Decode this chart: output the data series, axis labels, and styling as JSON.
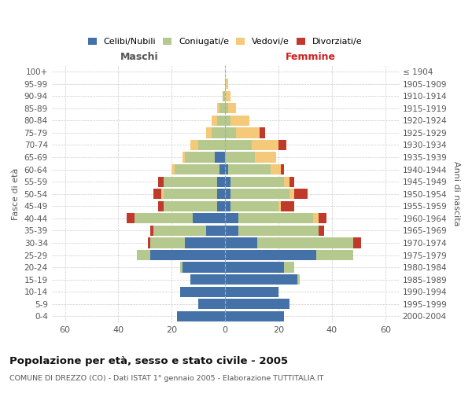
{
  "age_groups": [
    "0-4",
    "5-9",
    "10-14",
    "15-19",
    "20-24",
    "25-29",
    "30-34",
    "35-39",
    "40-44",
    "45-49",
    "50-54",
    "55-59",
    "60-64",
    "65-69",
    "70-74",
    "75-79",
    "80-84",
    "85-89",
    "90-94",
    "95-99",
    "100+"
  ],
  "birth_years": [
    "2000-2004",
    "1995-1999",
    "1990-1994",
    "1985-1989",
    "1980-1984",
    "1975-1979",
    "1970-1974",
    "1965-1969",
    "1960-1964",
    "1955-1959",
    "1950-1954",
    "1945-1949",
    "1940-1944",
    "1935-1939",
    "1930-1934",
    "1925-1929",
    "1920-1924",
    "1915-1919",
    "1910-1914",
    "1905-1909",
    "≤ 1904"
  ],
  "males": {
    "celibi": [
      18,
      10,
      17,
      13,
      16,
      28,
      15,
      7,
      12,
      3,
      3,
      3,
      2,
      4,
      0,
      0,
      0,
      0,
      0,
      0,
      0
    ],
    "coniugati": [
      0,
      0,
      0,
      0,
      1,
      5,
      13,
      20,
      22,
      20,
      20,
      20,
      17,
      11,
      10,
      5,
      3,
      2,
      1,
      0,
      0
    ],
    "vedovi": [
      0,
      0,
      0,
      0,
      0,
      0,
      0,
      0,
      0,
      0,
      1,
      0,
      1,
      1,
      3,
      2,
      2,
      1,
      0,
      0,
      0
    ],
    "divorziati": [
      0,
      0,
      0,
      0,
      0,
      0,
      1,
      1,
      3,
      2,
      3,
      2,
      0,
      0,
      0,
      0,
      0,
      0,
      0,
      0,
      0
    ]
  },
  "females": {
    "nubili": [
      22,
      24,
      20,
      27,
      22,
      34,
      12,
      5,
      5,
      2,
      2,
      2,
      1,
      0,
      0,
      0,
      0,
      0,
      0,
      0,
      0
    ],
    "coniugate": [
      0,
      0,
      0,
      1,
      4,
      14,
      36,
      30,
      28,
      18,
      22,
      20,
      16,
      11,
      10,
      4,
      2,
      1,
      0,
      0,
      0
    ],
    "vedove": [
      0,
      0,
      0,
      0,
      0,
      0,
      0,
      0,
      2,
      1,
      2,
      2,
      4,
      8,
      10,
      9,
      7,
      3,
      2,
      1,
      0
    ],
    "divorziate": [
      0,
      0,
      0,
      0,
      0,
      0,
      3,
      2,
      3,
      5,
      5,
      2,
      1,
      0,
      3,
      2,
      0,
      0,
      0,
      0,
      0
    ]
  },
  "colors": {
    "celibi_nubili": "#4472a8",
    "coniugati": "#b5c98e",
    "vedovi": "#f5c97a",
    "divorziati": "#c0392b"
  },
  "xlim": 65,
  "title": "Popolazione per età, sesso e stato civile - 2005",
  "subtitle": "COMUNE DI DREZZO (CO) - Dati ISTAT 1° gennaio 2005 - Elaborazione TUTTITALIA.IT",
  "xlabel_left": "Maschi",
  "xlabel_right": "Femmine",
  "ylabel_left": "Fasce di età",
  "ylabel_right": "Anni di nascita"
}
